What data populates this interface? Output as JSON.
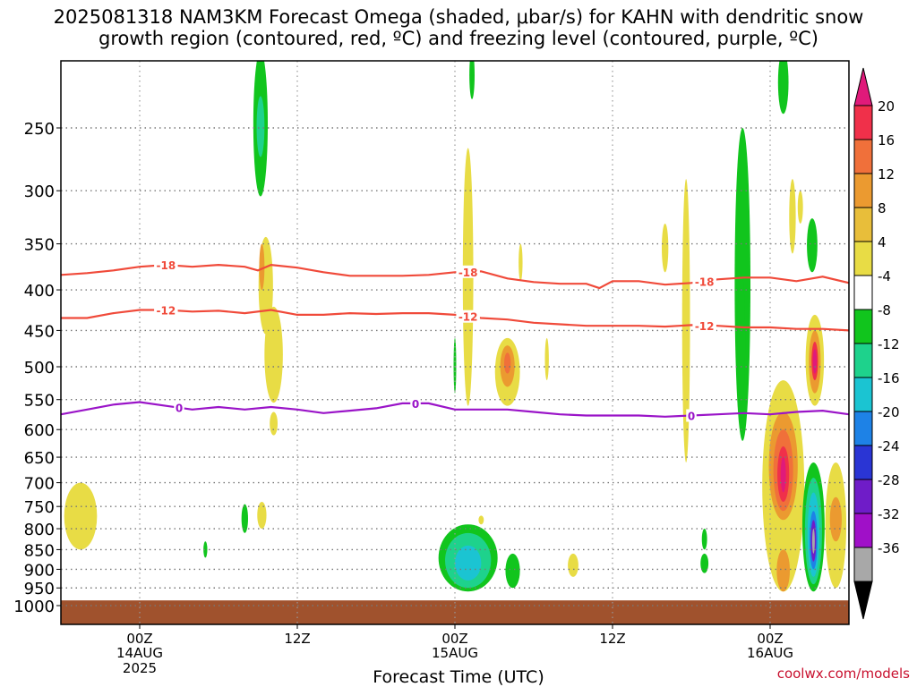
{
  "title_line1": "2025081318 NAM3KM Forecast Omega (shaded, μbar/s) for KAHN with dendritic snow",
  "title_line2": "growth region (contoured, red, ºC) and freezing level (contoured, purple, ºC)",
  "credit": "coolwx.com/models",
  "chart_data": {
    "type": "heatmap",
    "title": "2025081318 NAM3KM Forecast Omega (shaded, μbar/s) for KAHN with dendritic snow growth region (contoured, red, ºC) and freezing level (contoured, purple, ºC)",
    "xlabel": "Forecast Time (UTC)",
    "ylabel": "",
    "x_ticks": [
      {
        "t": 0,
        "label": "00Z",
        "sub1": "14AUG",
        "sub2": "2025"
      },
      {
        "t": 12,
        "label": "12Z",
        "sub1": "",
        "sub2": ""
      },
      {
        "t": 24,
        "label": "00Z",
        "sub1": "15AUG",
        "sub2": ""
      },
      {
        "t": 36,
        "label": "12Z",
        "sub1": "",
        "sub2": ""
      },
      {
        "t": 48,
        "label": "00Z",
        "sub1": "16AUG",
        "sub2": ""
      }
    ],
    "x_range_hours": [
      -6,
      54
    ],
    "y_ticks": [
      250,
      300,
      350,
      400,
      450,
      500,
      550,
      600,
      650,
      700,
      750,
      800,
      850,
      900,
      950,
      1000
    ],
    "y_range_hPa": [
      200,
      1020
    ],
    "y_scale": "log pressure",
    "grid": true,
    "colorbar": {
      "labels": [
        "20",
        "16",
        "12",
        "8",
        "4",
        "-4",
        "-8",
        "-12",
        "-16",
        "-20",
        "-24",
        "-28",
        "-32",
        "-36"
      ],
      "colors": [
        "#f0304a",
        "#f0703a",
        "#eb9a30",
        "#e8be3a",
        "#e8dc45",
        "#ffffff",
        "#11c51d",
        "#1ed28c",
        "#1bc4d2",
        "#1e82e6",
        "#2a35d4",
        "#6f1cc8",
        "#a010c8",
        "#a8a8a8"
      ],
      "top_color": "#e01a7a",
      "bottom_color": "#000000"
    },
    "contours": [
      {
        "name": "-18",
        "color": "#f04a3a",
        "label_at_h": [
          2,
          25,
          43
        ],
        "points": [
          [
            -6,
            383
          ],
          [
            -4,
            381
          ],
          [
            -2,
            378
          ],
          [
            0,
            374
          ],
          [
            2,
            372
          ],
          [
            4,
            374
          ],
          [
            6,
            372
          ],
          [
            8,
            374
          ],
          [
            9,
            378
          ],
          [
            10,
            372
          ],
          [
            12,
            375
          ],
          [
            14,
            380
          ],
          [
            16,
            384
          ],
          [
            18,
            384
          ],
          [
            20,
            384
          ],
          [
            22,
            383
          ],
          [
            24,
            380
          ],
          [
            26,
            379
          ],
          [
            28,
            387
          ],
          [
            30,
            391
          ],
          [
            32,
            393
          ],
          [
            34,
            393
          ],
          [
            35,
            398
          ],
          [
            36,
            390
          ],
          [
            38,
            390
          ],
          [
            40,
            394
          ],
          [
            42,
            392
          ],
          [
            44,
            388
          ],
          [
            46,
            386
          ],
          [
            48,
            386
          ],
          [
            50,
            390
          ],
          [
            52,
            385
          ],
          [
            54,
            392
          ]
        ]
      },
      {
        "name": "-12",
        "color": "#f04a3a",
        "label_at_h": [
          2,
          25,
          43
        ],
        "points": [
          [
            -6,
            434
          ],
          [
            -4,
            434
          ],
          [
            -2,
            428
          ],
          [
            0,
            424
          ],
          [
            2,
            424
          ],
          [
            4,
            426
          ],
          [
            6,
            425
          ],
          [
            8,
            428
          ],
          [
            10,
            424
          ],
          [
            12,
            430
          ],
          [
            14,
            430
          ],
          [
            16,
            428
          ],
          [
            18,
            429
          ],
          [
            20,
            428
          ],
          [
            22,
            428
          ],
          [
            24,
            430
          ],
          [
            26,
            434
          ],
          [
            28,
            436
          ],
          [
            30,
            440
          ],
          [
            32,
            442
          ],
          [
            34,
            444
          ],
          [
            36,
            444
          ],
          [
            38,
            444
          ],
          [
            40,
            445
          ],
          [
            42,
            443
          ],
          [
            44,
            444
          ],
          [
            46,
            446
          ],
          [
            48,
            446
          ],
          [
            50,
            448
          ],
          [
            52,
            448
          ],
          [
            54,
            450
          ]
        ]
      },
      {
        "name": "0",
        "color": "#9a14c8",
        "label_at_h": [
          3,
          21,
          42
        ],
        "points": [
          [
            -6,
            574
          ],
          [
            -4,
            566
          ],
          [
            -2,
            558
          ],
          [
            0,
            554
          ],
          [
            2,
            560
          ],
          [
            4,
            566
          ],
          [
            6,
            562
          ],
          [
            8,
            566
          ],
          [
            10,
            562
          ],
          [
            12,
            566
          ],
          [
            14,
            572
          ],
          [
            16,
            568
          ],
          [
            18,
            564
          ],
          [
            20,
            556
          ],
          [
            22,
            556
          ],
          [
            24,
            566
          ],
          [
            26,
            566
          ],
          [
            28,
            566
          ],
          [
            30,
            570
          ],
          [
            32,
            574
          ],
          [
            34,
            576
          ],
          [
            36,
            576
          ],
          [
            38,
            576
          ],
          [
            40,
            578
          ],
          [
            42,
            576
          ],
          [
            44,
            574
          ],
          [
            46,
            572
          ],
          [
            48,
            574
          ],
          [
            50,
            570
          ],
          [
            52,
            568
          ],
          [
            54,
            574
          ]
        ]
      }
    ],
    "omega_cells": [
      {
        "t": 9.2,
        "p1": 200,
        "p2": 305,
        "w": 1.1,
        "fill": "#11c51d"
      },
      {
        "t": 9.2,
        "p1": 228,
        "p2": 272,
        "w": 0.6,
        "fill": "#1ed28c"
      },
      {
        "t": 9.6,
        "p1": 343,
        "p2": 455,
        "w": 1.1,
        "fill": "#e8dc45"
      },
      {
        "t": 10.2,
        "p1": 420,
        "p2": 555,
        "w": 1.4,
        "fill": "#e8dc45"
      },
      {
        "t": 10.2,
        "p1": 570,
        "p2": 610,
        "w": 0.6,
        "fill": "#e8dc45"
      },
      {
        "t": 9.3,
        "p1": 350,
        "p2": 400,
        "w": 0.4,
        "fill": "#eb9a30"
      },
      {
        "t": 8.0,
        "p1": 745,
        "p2": 810,
        "w": 0.5,
        "fill": "#11c51d"
      },
      {
        "t": 9.3,
        "p1": 740,
        "p2": 800,
        "w": 0.7,
        "fill": "#e8dc45"
      },
      {
        "t": 5.0,
        "p1": 830,
        "p2": 870,
        "w": 0.3,
        "fill": "#11c51d"
      },
      {
        "t": -4.5,
        "p1": 700,
        "p2": 850,
        "w": 2.5,
        "fill": "#e8dc45"
      },
      {
        "t": 25.0,
        "p1": 265,
        "p2": 560,
        "w": 0.8,
        "fill": "#e8dc45"
      },
      {
        "t": 25.0,
        "p1": 300,
        "p2": 360,
        "w": 0.3,
        "fill": "#e8dc45"
      },
      {
        "t": 24.0,
        "p1": 460,
        "p2": 540,
        "w": 0.2,
        "fill": "#11c51d"
      },
      {
        "t": 28.0,
        "p1": 460,
        "p2": 560,
        "w": 1.9,
        "fill": "#e8dc45"
      },
      {
        "t": 28.0,
        "p1": 470,
        "p2": 530,
        "w": 1.1,
        "fill": "#eb9a30"
      },
      {
        "t": 28.0,
        "p1": 480,
        "p2": 510,
        "w": 0.5,
        "fill": "#f0703a"
      },
      {
        "t": 31.0,
        "p1": 460,
        "p2": 520,
        "w": 0.3,
        "fill": "#e8dc45"
      },
      {
        "t": 25.3,
        "p1": 200,
        "p2": 230,
        "w": 0.4,
        "fill": "#11c51d"
      },
      {
        "t": 29.0,
        "p1": 350,
        "p2": 390,
        "w": 0.3,
        "fill": "#e8dc45"
      },
      {
        "t": 26.0,
        "p1": 770,
        "p2": 790,
        "w": 0.4,
        "fill": "#e8dc45"
      },
      {
        "t": 25.0,
        "p1": 790,
        "p2": 960,
        "w": 4.5,
        "fill": "#11c51d"
      },
      {
        "t": 25.0,
        "p1": 810,
        "p2": 950,
        "w": 3.5,
        "fill": "#1ed28c"
      },
      {
        "t": 25.0,
        "p1": 840,
        "p2": 930,
        "w": 2.0,
        "fill": "#1bc4d2"
      },
      {
        "t": 28.4,
        "p1": 860,
        "p2": 950,
        "w": 1.1,
        "fill": "#11c51d"
      },
      {
        "t": 33.0,
        "p1": 860,
        "p2": 920,
        "w": 0.8,
        "fill": "#e8dc45"
      },
      {
        "t": 40.0,
        "p1": 330,
        "p2": 380,
        "w": 0.5,
        "fill": "#e8dc45"
      },
      {
        "t": 41.6,
        "p1": 290,
        "p2": 660,
        "w": 0.6,
        "fill": "#e8dc45"
      },
      {
        "t": 45.9,
        "p1": 250,
        "p2": 620,
        "w": 1.2,
        "fill": "#11c51d"
      },
      {
        "t": 45.8,
        "p1": 380,
        "p2": 560,
        "w": 0.6,
        "fill": "#11c51d"
      },
      {
        "t": 43.0,
        "p1": 860,
        "p2": 910,
        "w": 0.6,
        "fill": "#11c51d"
      },
      {
        "t": 43.0,
        "p1": 800,
        "p2": 850,
        "w": 0.4,
        "fill": "#11c51d"
      },
      {
        "t": 49.0,
        "p1": 200,
        "p2": 240,
        "w": 0.8,
        "fill": "#11c51d"
      },
      {
        "t": 49.7,
        "p1": 290,
        "p2": 360,
        "w": 0.5,
        "fill": "#e8dc45"
      },
      {
        "t": 51.2,
        "p1": 325,
        "p2": 380,
        "w": 0.8,
        "fill": "#11c51d"
      },
      {
        "t": 50.3,
        "p1": 300,
        "p2": 330,
        "w": 0.4,
        "fill": "#e8dc45"
      },
      {
        "t": 51.4,
        "p1": 430,
        "p2": 560,
        "w": 1.4,
        "fill": "#e8dc45"
      },
      {
        "t": 51.4,
        "p1": 450,
        "p2": 540,
        "w": 0.9,
        "fill": "#eb9a30"
      },
      {
        "t": 51.4,
        "p1": 465,
        "p2": 520,
        "w": 0.5,
        "fill": "#f0304a"
      },
      {
        "t": 51.4,
        "p1": 475,
        "p2": 510,
        "w": 0.3,
        "fill": "#e01a7a"
      },
      {
        "t": 49.0,
        "p1": 520,
        "p2": 960,
        "w": 3.2,
        "fill": "#e8dc45"
      },
      {
        "t": 49.0,
        "p1": 570,
        "p2": 780,
        "w": 2.2,
        "fill": "#eb9a30"
      },
      {
        "t": 49.0,
        "p1": 600,
        "p2": 760,
        "w": 1.5,
        "fill": "#f0703a"
      },
      {
        "t": 49.0,
        "p1": 630,
        "p2": 740,
        "w": 0.9,
        "fill": "#f0304a"
      },
      {
        "t": 49.0,
        "p1": 650,
        "p2": 720,
        "w": 0.4,
        "fill": "#e01a7a"
      },
      {
        "t": 49.0,
        "p1": 850,
        "p2": 960,
        "w": 1.0,
        "fill": "#eb9a30"
      },
      {
        "t": 51.3,
        "p1": 660,
        "p2": 960,
        "w": 1.7,
        "fill": "#11c51d"
      },
      {
        "t": 51.3,
        "p1": 690,
        "p2": 940,
        "w": 1.3,
        "fill": "#1ed28c"
      },
      {
        "t": 51.3,
        "p1": 720,
        "p2": 920,
        "w": 0.9,
        "fill": "#1bc4d2"
      },
      {
        "t": 51.3,
        "p1": 760,
        "p2": 900,
        "w": 0.6,
        "fill": "#1e82e6"
      },
      {
        "t": 51.3,
        "p1": 780,
        "p2": 880,
        "w": 0.4,
        "fill": "#6f1cc8"
      },
      {
        "t": 51.3,
        "p1": 800,
        "p2": 860,
        "w": 0.2,
        "fill": "#a8a8a8"
      },
      {
        "t": 53.0,
        "p1": 660,
        "p2": 950,
        "w": 1.6,
        "fill": "#e8dc45"
      },
      {
        "t": 53.0,
        "p1": 730,
        "p2": 830,
        "w": 0.9,
        "fill": "#eb9a30"
      }
    ],
    "ground": {
      "p_top": 985,
      "color": "#a0522d"
    }
  }
}
